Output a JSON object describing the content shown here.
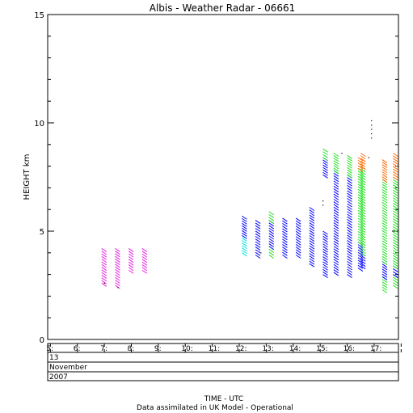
{
  "chart_data": {
    "type": "scatter",
    "title": "Albis - Weather Radar - 06661",
    "ylabel": "HEIGHT km",
    "xlabel": "TIME - UTC",
    "footer": "Data assimilated in UK Model - Operational",
    "ylim": [
      0,
      15
    ],
    "xlim": [
      4.9,
      17.9
    ],
    "y_ticks": [
      "0",
      "5",
      "10",
      "15"
    ],
    "x_ticks": [
      "5:",
      "6:",
      "7:",
      "8:",
      "9:",
      "10:",
      "11:",
      "12:",
      "13:",
      "14:",
      "15:",
      "16:",
      "17:"
    ],
    "date_rows": {
      "day": "13",
      "month": "November",
      "year": "2007"
    },
    "grid": false,
    "legend": "none",
    "color_bands": {
      "magenta": "#e020e0",
      "cyan": "#00e0e0",
      "blue": "#0000ff",
      "green": "#20e020",
      "orange": "#ff6a00",
      "black": "#000000"
    },
    "profiles": [
      {
        "time": 6.9,
        "y_bottom": 2.6,
        "y_top": 4.2,
        "segments": [
          {
            "from": 2.6,
            "to": 4.2,
            "color": "magenta"
          }
        ]
      },
      {
        "time": 7.4,
        "y_bottom": 2.5,
        "y_top": 4.2,
        "segments": [
          {
            "from": 2.5,
            "to": 4.2,
            "color": "magenta"
          }
        ]
      },
      {
        "time": 7.9,
        "y_bottom": 3.2,
        "y_top": 4.2,
        "segments": [
          {
            "from": 3.2,
            "to": 4.2,
            "color": "magenta"
          }
        ]
      },
      {
        "time": 8.4,
        "y_bottom": 3.2,
        "y_top": 4.2,
        "segments": [
          {
            "from": 3.2,
            "to": 4.2,
            "color": "magenta"
          }
        ]
      },
      {
        "time": 12.1,
        "y_bottom": 4.0,
        "y_top": 5.7,
        "segments": [
          {
            "from": 4.0,
            "to": 4.8,
            "color": "cyan"
          },
          {
            "from": 4.8,
            "to": 5.7,
            "color": "blue"
          }
        ]
      },
      {
        "time": 12.6,
        "y_bottom": 3.9,
        "y_top": 5.5,
        "segments": [
          {
            "from": 3.9,
            "to": 5.5,
            "color": "blue"
          }
        ]
      },
      {
        "time": 13.1,
        "y_bottom": 3.9,
        "y_top": 5.9,
        "segments": [
          {
            "from": 3.9,
            "to": 4.3,
            "color": "green"
          },
          {
            "from": 4.3,
            "to": 5.5,
            "color": "blue"
          },
          {
            "from": 5.5,
            "to": 5.9,
            "color": "green"
          }
        ]
      },
      {
        "time": 13.6,
        "y_bottom": 3.9,
        "y_top": 5.6,
        "segments": [
          {
            "from": 3.9,
            "to": 5.6,
            "color": "blue"
          }
        ]
      },
      {
        "time": 14.1,
        "y_bottom": 3.9,
        "y_top": 5.6,
        "segments": [
          {
            "from": 3.9,
            "to": 5.6,
            "color": "blue"
          }
        ]
      },
      {
        "time": 14.6,
        "y_bottom": 3.5,
        "y_top": 6.1,
        "segments": [
          {
            "from": 3.5,
            "to": 6.1,
            "color": "blue"
          }
        ]
      },
      {
        "time": 15.1,
        "y_bottom": 3.0,
        "y_top": 5.0,
        "segments": [
          {
            "from": 3.0,
            "to": 5.0,
            "color": "blue"
          }
        ]
      },
      {
        "time": 15.1,
        "y_bottom": 7.6,
        "y_top": 8.8,
        "segments": [
          {
            "from": 7.6,
            "to": 8.4,
            "color": "blue"
          },
          {
            "from": 8.4,
            "to": 8.8,
            "color": "green"
          }
        ]
      },
      {
        "time": 15.5,
        "y_bottom": 3.1,
        "y_top": 8.6,
        "segments": [
          {
            "from": 3.1,
            "to": 7.8,
            "color": "blue"
          },
          {
            "from": 7.8,
            "to": 8.6,
            "color": "green"
          }
        ]
      },
      {
        "time": 16.0,
        "y_bottom": 3.0,
        "y_top": 8.5,
        "segments": [
          {
            "from": 3.0,
            "to": 7.6,
            "color": "blue"
          },
          {
            "from": 7.6,
            "to": 8.5,
            "color": "green"
          }
        ]
      },
      {
        "time": 16.4,
        "y_bottom": 3.3,
        "y_top": 8.4,
        "segments": [
          {
            "from": 3.3,
            "to": 4.5,
            "color": "blue"
          },
          {
            "from": 4.5,
            "to": 7.9,
            "color": "green"
          },
          {
            "from": 7.9,
            "to": 8.4,
            "color": "orange"
          }
        ]
      },
      {
        "time": 16.5,
        "y_bottom": 3.4,
        "y_top": 8.6,
        "segments": [
          {
            "from": 3.4,
            "to": 4.0,
            "color": "blue"
          },
          {
            "from": 4.0,
            "to": 8.0,
            "color": "green"
          },
          {
            "from": 8.0,
            "to": 8.6,
            "color": "orange"
          }
        ]
      },
      {
        "time": 17.3,
        "y_bottom": 2.3,
        "y_top": 8.3,
        "segments": [
          {
            "from": 2.3,
            "to": 2.9,
            "color": "green"
          },
          {
            "from": 2.9,
            "to": 3.6,
            "color": "blue"
          },
          {
            "from": 3.6,
            "to": 7.4,
            "color": "green"
          },
          {
            "from": 7.4,
            "to": 8.3,
            "color": "orange"
          }
        ]
      },
      {
        "time": 17.7,
        "y_bottom": 2.5,
        "y_top": 8.6,
        "segments": [
          {
            "from": 2.5,
            "to": 3.0,
            "color": "green"
          },
          {
            "from": 3.0,
            "to": 3.4,
            "color": "blue"
          },
          {
            "from": 3.4,
            "to": 7.5,
            "color": "green"
          },
          {
            "from": 7.5,
            "to": 8.6,
            "color": "orange"
          }
        ]
      }
    ],
    "isolated_points": [
      {
        "time": 16.9,
        "y": 10.1,
        "color": "black"
      },
      {
        "time": 16.9,
        "y": 9.9,
        "color": "black"
      },
      {
        "time": 16.9,
        "y": 9.7,
        "color": "black"
      },
      {
        "time": 16.9,
        "y": 9.5,
        "color": "black"
      },
      {
        "time": 16.9,
        "y": 9.3,
        "color": "black"
      },
      {
        "time": 15.1,
        "y": 6.4,
        "color": "black"
      },
      {
        "time": 15.1,
        "y": 6.2,
        "color": "black"
      },
      {
        "time": 15.8,
        "y": 8.6,
        "color": "black"
      },
      {
        "time": 16.8,
        "y": 8.4,
        "color": "black"
      },
      {
        "time": 12.8,
        "y": 4.0,
        "color": "black"
      },
      {
        "time": 7.0,
        "y": 2.6,
        "color": "black"
      },
      {
        "time": 7.5,
        "y": 2.4,
        "color": "black"
      }
    ]
  }
}
